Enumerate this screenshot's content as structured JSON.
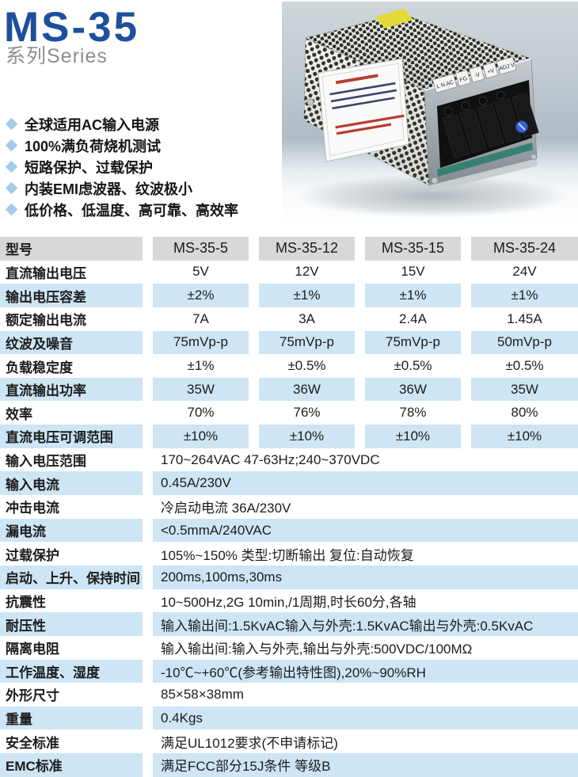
{
  "colors": {
    "accent_blue": "#1e4f9c",
    "subtitle_gray": "#8e8e8e",
    "bullet_blue": "#a5cbe9",
    "row_blue": "#cde5f5",
    "header_gray": "#d8d8d8",
    "text": "#1c1c1c"
  },
  "header": {
    "title": "MS-35",
    "subtitle": "系列Series"
  },
  "features": [
    "全球适用AC输入电源",
    "100%满负荷烧机测试",
    "短路保护、过载保护",
    "内装EMI虑波器、纹波极小",
    "低价格、低温度、高可靠、高效率"
  ],
  "product": {
    "terminal_labels": [
      "L N AC",
      "FG",
      "-V",
      "+V",
      "ADJ V"
    ]
  },
  "table": {
    "model_header_label": "型号",
    "models": [
      "MS-35-5",
      "MS-35-12",
      "MS-35-15",
      "MS-35-24"
    ],
    "matrix_rows": [
      {
        "label": "直流输出电压",
        "values": [
          "5V",
          "12V",
          "15V",
          "24V"
        ]
      },
      {
        "label": "输出电压容差",
        "values": [
          "±2%",
          "±1%",
          "±1%",
          "±1%"
        ]
      },
      {
        "label": "额定输出电流",
        "values": [
          "7A",
          "3A",
          "2.4A",
          "1.45A"
        ]
      },
      {
        "label": "纹波及噪音",
        "values": [
          "75mVp-p",
          "75mVp-p",
          "75mVp-p",
          "50mVp-p"
        ]
      },
      {
        "label": "负载稳定度",
        "values": [
          "±1%",
          "±0.5%",
          "±0.5%",
          "±0.5%"
        ]
      },
      {
        "label": "直流输出功率",
        "values": [
          "35W",
          "36W",
          "36W",
          "35W"
        ]
      },
      {
        "label": "效率",
        "values": [
          "70%",
          "76%",
          "78%",
          "80%"
        ]
      },
      {
        "label": "直流电压可调范围",
        "values": [
          "±10%",
          "±10%",
          "±10%",
          "±10%"
        ]
      }
    ],
    "info_rows": [
      {
        "label": "输入电压范围",
        "value": "170~264VAC 47-63Hz;240~370VDC"
      },
      {
        "label": "输入电流",
        "value": "0.45A/230V"
      },
      {
        "label": "冲击电流",
        "value": "冷启动电流 36A/230V"
      },
      {
        "label": "漏电流",
        "value": "<0.5mmA/240VAC"
      },
      {
        "label": "过载保护",
        "value": "105%~150% 类型:切断输出 复位:自动恢复"
      },
      {
        "label": "启动、上升、保持时间",
        "value": "200ms,100ms,30ms"
      },
      {
        "label": "抗震性",
        "value": "10~500Hz,2G 10min,/1周期,时长60分,各轴"
      },
      {
        "label": "耐压性",
        "value": "输入输出间:1.5KvAC输入与外壳:1.5KvAC输出与外壳:0.5KvAC"
      },
      {
        "label": "隔离电阻",
        "value": "输入输出间:输入与外壳,输出与外壳:500VDC/100MΩ"
      },
      {
        "label": "工作温度、湿度",
        "value": "-10℃~+60℃(参考输出特性图),20%~90%RH"
      },
      {
        "label": "外形尺寸",
        "value": "85×58×38mm"
      },
      {
        "label": "重量",
        "value": "0.4Kgs"
      },
      {
        "label": "安全标准",
        "value": "满足UL1012要求(不申请标记)"
      },
      {
        "label": "EMC标准",
        "value": "满足FCC部分15J条件 等级B"
      }
    ]
  }
}
